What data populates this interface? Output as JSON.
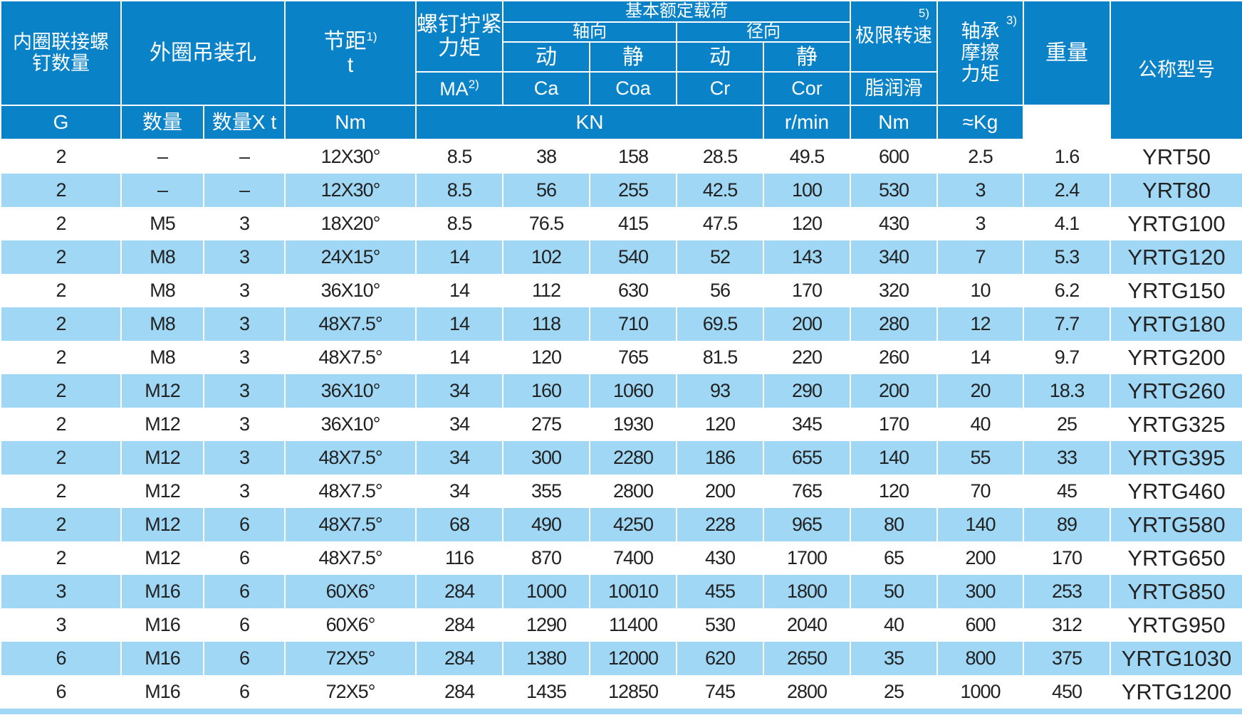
{
  "colors": {
    "header": "#0a82c8",
    "alt_row": "#9fd7f5"
  },
  "header": {
    "inner_bolts": "内圈联接螺钉数量",
    "outer_holes": "外圈吊装孔",
    "pitch": "节距",
    "pitch_sym": "t",
    "pitch_fn": "1)",
    "torque": "螺钉拧紧力矩",
    "torque_sym": "MA",
    "torque_fn": "2)",
    "basic_load": "基本额定载荷",
    "axial": "轴向",
    "radial": "径向",
    "dynamic": "动",
    "static": "静",
    "ca": "Ca",
    "coa": "Coa",
    "cr": "Cr",
    "cor": "Cor",
    "speed": "极限转速",
    "speed_fn": "5)",
    "grease": "脂润滑",
    "friction": "轴承摩擦力矩",
    "friction_fn": "3)",
    "weight": "重量",
    "model": "公称型号",
    "unit_g": "G",
    "unit_qty": "数量",
    "unit_pitch": "数量X t",
    "unit_nm": "Nm",
    "unit_kn": "KN",
    "unit_rpm": "r/min",
    "unit_nm2": "Nm",
    "unit_kg": "≈Kg"
  },
  "rows": [
    [
      "2",
      "–",
      "–",
      "12X30°",
      "8.5",
      "38",
      "158",
      "28.5",
      "49.5",
      "600",
      "2.5",
      "1.6",
      "YRT50"
    ],
    [
      "2",
      "–",
      "–",
      "12X30°",
      "8.5",
      "56",
      "255",
      "42.5",
      "100",
      "530",
      "3",
      "2.4",
      "YRT80"
    ],
    [
      "2",
      "M5",
      "3",
      "18X20°",
      "8.5",
      "76.5",
      "415",
      "47.5",
      "120",
      "430",
      "3",
      "4.1",
      "YRTG100"
    ],
    [
      "2",
      "M8",
      "3",
      "24X15°",
      "14",
      "102",
      "540",
      "52",
      "143",
      "340",
      "7",
      "5.3",
      "YRTG120"
    ],
    [
      "2",
      "M8",
      "3",
      "36X10°",
      "14",
      "112",
      "630",
      "56",
      "170",
      "320",
      "10",
      "6.2",
      "YRTG150"
    ],
    [
      "2",
      "M8",
      "3",
      "48X7.5°",
      "14",
      "118",
      "710",
      "69.5",
      "200",
      "280",
      "12",
      "7.7",
      "YRTG180"
    ],
    [
      "2",
      "M8",
      "3",
      "48X7.5°",
      "14",
      "120",
      "765",
      "81.5",
      "220",
      "260",
      "14",
      "9.7",
      "YRTG200"
    ],
    [
      "2",
      "M12",
      "3",
      "36X10°",
      "34",
      "160",
      "1060",
      "93",
      "290",
      "200",
      "20",
      "18.3",
      "YRTG260"
    ],
    [
      "2",
      "M12",
      "3",
      "36X10°",
      "34",
      "275",
      "1930",
      "120",
      "345",
      "170",
      "40",
      "25",
      "YRTG325"
    ],
    [
      "2",
      "M12",
      "3",
      "48X7.5°",
      "34",
      "300",
      "2280",
      "186",
      "655",
      "140",
      "55",
      "33",
      "YRTG395"
    ],
    [
      "2",
      "M12",
      "3",
      "48X7.5°",
      "34",
      "355",
      "2800",
      "200",
      "765",
      "120",
      "70",
      "45",
      "YRTG460"
    ],
    [
      "2",
      "M12",
      "6",
      "48X7.5°",
      "68",
      "490",
      "4250",
      "228",
      "965",
      "80",
      "140",
      "89",
      "YRTG580"
    ],
    [
      "2",
      "M12",
      "6",
      "48X7.5°",
      "116",
      "870",
      "7400",
      "430",
      "1700",
      "65",
      "200",
      "170",
      "YRTG650"
    ],
    [
      "3",
      "M16",
      "6",
      "60X6°",
      "284",
      "1000",
      "10010",
      "455",
      "1800",
      "50",
      "300",
      "253",
      "YRTG850"
    ],
    [
      "3",
      "M16",
      "6",
      "60X6°",
      "284",
      "1290",
      "11400",
      "530",
      "2040",
      "40",
      "600",
      "312",
      "YRTG950"
    ],
    [
      "6",
      "M16",
      "6",
      "72X5°",
      "284",
      "1380",
      "12000",
      "620",
      "2650",
      "35",
      "800",
      "375",
      "YRTG1030"
    ],
    [
      "6",
      "M16",
      "6",
      "72X5°",
      "284",
      "1435",
      "12850",
      "745",
      "2800",
      "25",
      "1000",
      "450",
      "YRTG1200"
    ]
  ]
}
